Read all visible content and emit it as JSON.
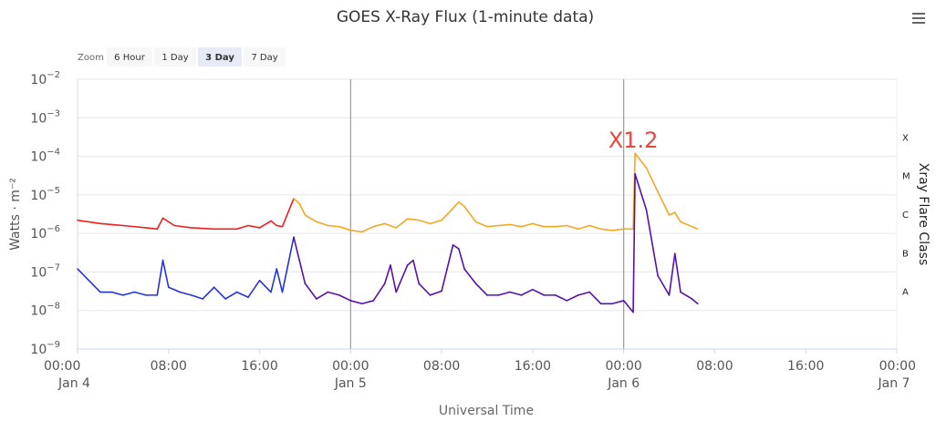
{
  "title": "GOES X-Ray Flux (1-minute data)",
  "menu_icon": "hamburger-menu-icon",
  "zoom": {
    "label": "Zoom",
    "buttons": [
      "6 Hour",
      "1 Day",
      "3 Day",
      "7 Day"
    ],
    "selected": "3 Day"
  },
  "chart_data": {
    "type": "line",
    "title": "GOES X-Ray Flux (1-minute data)",
    "xlabel": "Universal Time",
    "ylabel": "Watts · m⁻²",
    "y2label": "Xray Flare Class",
    "y_scale": "log",
    "ylim": [
      1e-09,
      0.01
    ],
    "xlim": [
      "2024-01-04 00:00",
      "2024-01-07 00:00"
    ],
    "x_ticks": [
      {
        "top": "00:00",
        "bottom": "Jan 4"
      },
      {
        "top": "08:00",
        "bottom": ""
      },
      {
        "top": "16:00",
        "bottom": ""
      },
      {
        "top": "00:00",
        "bottom": "Jan 5"
      },
      {
        "top": "08:00",
        "bottom": ""
      },
      {
        "top": "16:00",
        "bottom": ""
      },
      {
        "top": "00:00",
        "bottom": "Jan 6"
      },
      {
        "top": "08:00",
        "bottom": ""
      },
      {
        "top": "16:00",
        "bottom": ""
      },
      {
        "top": "00:00",
        "bottom": "Jan 7"
      }
    ],
    "y_ticks": [
      {
        "base": "10",
        "exp": "−9"
      },
      {
        "base": "10",
        "exp": "−8"
      },
      {
        "base": "10",
        "exp": "−7"
      },
      {
        "base": "10",
        "exp": "−6"
      },
      {
        "base": "10",
        "exp": "−5"
      },
      {
        "base": "10",
        "exp": "−4"
      },
      {
        "base": "10",
        "exp": "−3"
      },
      {
        "base": "10",
        "exp": "−2"
      }
    ],
    "flare_classes": [
      {
        "label": "A",
        "value": 1e-08
      },
      {
        "label": "B",
        "value": 1e-07
      },
      {
        "label": "C",
        "value": 1e-06
      },
      {
        "label": "M",
        "value": 1e-05
      },
      {
        "label": "X",
        "value": 0.0001
      }
    ],
    "day_lines": [
      "2024-01-05 00:00",
      "2024-01-06 00:00"
    ],
    "grid": true,
    "annotations": [
      {
        "text": "X1.2",
        "x": "2024-01-06 01:00",
        "y": 0.00012,
        "color": "#e8463a"
      }
    ],
    "colors": {
      "long_low": "#ee2020",
      "long_high": "#f5a623",
      "short_low": "#2233dd",
      "short_high": "#5511aa",
      "axis_text": "#555555",
      "grid": "#e6e6e6",
      "day_line": "#999999"
    },
    "series": [
      {
        "key": "long",
        "x": [
          "2024-01-04 00:00",
          "2024-01-04 02:00",
          "2024-01-04 04:00",
          "2024-01-04 06:00",
          "2024-01-04 07:00",
          "2024-01-04 07:30",
          "2024-01-04 08:30",
          "2024-01-04 10:00",
          "2024-01-04 12:00",
          "2024-01-04 14:00",
          "2024-01-04 15:00",
          "2024-01-04 16:00",
          "2024-01-04 17:00",
          "2024-01-04 17:30",
          "2024-01-04 18:00",
          "2024-01-04 19:00",
          "2024-01-04 19:30",
          "2024-01-04 20:00",
          "2024-01-04 21:00",
          "2024-01-04 22:00",
          "2024-01-04 23:00",
          "2024-01-05 00:00",
          "2024-01-05 01:00",
          "2024-01-05 02:00",
          "2024-01-05 03:00",
          "2024-01-05 04:00",
          "2024-01-05 05:00",
          "2024-01-05 06:00",
          "2024-01-05 07:00",
          "2024-01-05 08:00",
          "2024-01-05 09:00",
          "2024-01-05 09:30",
          "2024-01-05 10:00",
          "2024-01-05 11:00",
          "2024-01-05 12:00",
          "2024-01-05 13:00",
          "2024-01-05 14:00",
          "2024-01-05 15:00",
          "2024-01-05 16:00",
          "2024-01-05 17:00",
          "2024-01-05 18:00",
          "2024-01-05 19:00",
          "2024-01-05 20:00",
          "2024-01-05 21:00",
          "2024-01-05 22:00",
          "2024-01-05 23:00",
          "2024-01-06 00:00",
          "2024-01-06 00:50",
          "2024-01-06 01:00",
          "2024-01-06 02:00",
          "2024-01-06 03:00",
          "2024-01-06 04:00",
          "2024-01-06 04:30",
          "2024-01-06 05:00",
          "2024-01-06 06:00",
          "2024-01-06 06:30"
        ],
        "values": [
          2.2e-06,
          1.8e-06,
          1.6e-06,
          1.4e-06,
          1.3e-06,
          2.5e-06,
          1.6e-06,
          1.4e-06,
          1.3e-06,
          1.3e-06,
          1.6e-06,
          1.4e-06,
          2.1e-06,
          1.6e-06,
          1.5e-06,
          8e-06,
          6e-06,
          3e-06,
          2e-06,
          1.6e-06,
          1.5e-06,
          1.2e-06,
          1.1e-06,
          1.5e-06,
          1.8e-06,
          1.4e-06,
          2.4e-06,
          2.2e-06,
          1.8e-06,
          2.2e-06,
          4.5e-06,
          6.5e-06,
          5e-06,
          2e-06,
          1.5e-06,
          1.6e-06,
          1.7e-06,
          1.5e-06,
          1.8e-06,
          1.5e-06,
          1.5e-06,
          1.6e-06,
          1.3e-06,
          1.6e-06,
          1.3e-06,
          1.2e-06,
          1.3e-06,
          1.3e-06,
          0.00012,
          5e-05,
          1.2e-05,
          3e-06,
          3.5e-06,
          2e-06,
          1.5e-06,
          1.3e-06
        ]
      },
      {
        "key": "short",
        "x": [
          "2024-01-04 00:00",
          "2024-01-04 01:00",
          "2024-01-04 02:00",
          "2024-01-04 03:00",
          "2024-01-04 04:00",
          "2024-01-04 05:00",
          "2024-01-04 06:00",
          "2024-01-04 07:00",
          "2024-01-04 07:30",
          "2024-01-04 08:00",
          "2024-01-04 09:00",
          "2024-01-04 10:00",
          "2024-01-04 11:00",
          "2024-01-04 12:00",
          "2024-01-04 13:00",
          "2024-01-04 14:00",
          "2024-01-04 15:00",
          "2024-01-04 16:00",
          "2024-01-04 17:00",
          "2024-01-04 17:30",
          "2024-01-04 18:00",
          "2024-01-04 19:00",
          "2024-01-04 19:30",
          "2024-01-04 20:00",
          "2024-01-04 21:00",
          "2024-01-04 22:00",
          "2024-01-04 23:00",
          "2024-01-05 00:00",
          "2024-01-05 01:00",
          "2024-01-05 02:00",
          "2024-01-05 03:00",
          "2024-01-05 03:30",
          "2024-01-05 04:00",
          "2024-01-05 05:00",
          "2024-01-05 05:30",
          "2024-01-05 06:00",
          "2024-01-05 07:00",
          "2024-01-05 08:00",
          "2024-01-05 09:00",
          "2024-01-05 09:30",
          "2024-01-05 10:00",
          "2024-01-05 11:00",
          "2024-01-05 12:00",
          "2024-01-05 13:00",
          "2024-01-05 14:00",
          "2024-01-05 15:00",
          "2024-01-05 16:00",
          "2024-01-05 17:00",
          "2024-01-05 18:00",
          "2024-01-05 19:00",
          "2024-01-05 20:00",
          "2024-01-05 21:00",
          "2024-01-05 22:00",
          "2024-01-05 23:00",
          "2024-01-06 00:00",
          "2024-01-06 00:50",
          "2024-01-06 01:00",
          "2024-01-06 02:00",
          "2024-01-06 03:00",
          "2024-01-06 04:00",
          "2024-01-06 04:30",
          "2024-01-06 05:00",
          "2024-01-06 06:00",
          "2024-01-06 06:30"
        ],
        "values": [
          1.2e-07,
          6e-08,
          3e-08,
          3e-08,
          2.5e-08,
          3e-08,
          2.5e-08,
          2.5e-08,
          2e-07,
          4e-08,
          3e-08,
          2.5e-08,
          2e-08,
          4e-08,
          2e-08,
          3e-08,
          2.2e-08,
          6e-08,
          3e-08,
          1.2e-07,
          3e-08,
          8e-07,
          2e-07,
          5e-08,
          2e-08,
          3e-08,
          2.5e-08,
          1.8e-08,
          1.5e-08,
          1.8e-08,
          5e-08,
          1.5e-07,
          3e-08,
          1.5e-07,
          2e-07,
          5e-08,
          2.5e-08,
          3.2e-08,
          5e-07,
          4e-07,
          1.2e-07,
          5e-08,
          2.5e-08,
          2.5e-08,
          3e-08,
          2.5e-08,
          3.5e-08,
          2.5e-08,
          2.5e-08,
          1.8e-08,
          2.5e-08,
          3e-08,
          1.5e-08,
          1.5e-08,
          1.8e-08,
          9e-09,
          3.5e-05,
          4e-06,
          8e-08,
          2.5e-08,
          3e-07,
          3e-08,
          2e-08,
          1.5e-08
        ]
      }
    ]
  }
}
